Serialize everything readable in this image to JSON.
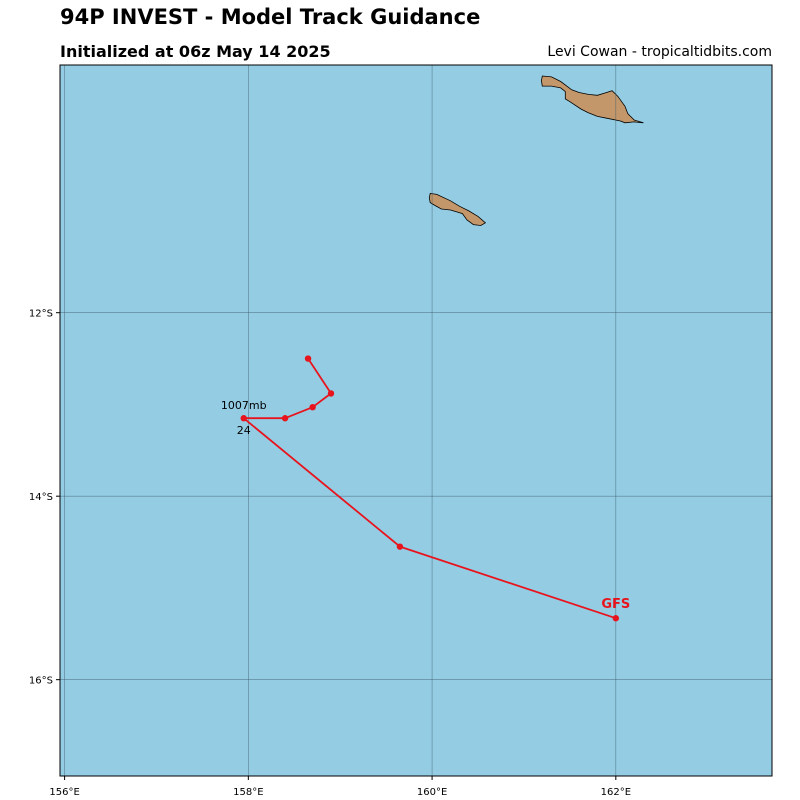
{
  "header": {
    "title": "94P INVEST - Model Track Guidance",
    "subtitle": "Initialized at 06z May 14 2025",
    "credit": "Levi Cowan - tropicaltidbits.com"
  },
  "map": {
    "lon_range": [
      155.95,
      163.7
    ],
    "lat_range": [
      -9.3,
      -17.05
    ],
    "ocean_color": "#94cde3",
    "land_color": "#c3976a",
    "track_color": "#e8141d",
    "lon_ticks": [
      {
        "value": 156,
        "label": "156°E"
      },
      {
        "value": 158,
        "label": "158°E"
      },
      {
        "value": 160,
        "label": "160°E"
      },
      {
        "value": 162,
        "label": "162°E"
      }
    ],
    "lat_ticks": [
      {
        "value": -12,
        "label": "12°S"
      },
      {
        "value": -14,
        "label": "14°S"
      },
      {
        "value": -16,
        "label": "16°S"
      }
    ],
    "track": {
      "model": "GFS",
      "points": [
        {
          "lon": 162.0,
          "lat": -15.33
        },
        {
          "lon": 159.65,
          "lat": -14.55
        },
        {
          "lon": 157.95,
          "lat": -13.15
        },
        {
          "lon": 158.4,
          "lat": -13.15
        },
        {
          "lon": 158.7,
          "lat": -13.03
        },
        {
          "lon": 158.9,
          "lat": -12.88
        },
        {
          "lon": 158.65,
          "lat": -12.5
        }
      ],
      "annotation": {
        "lon": 157.95,
        "lat": -13.15,
        "pressure": "1007mb",
        "hour": "24"
      }
    },
    "islands": [
      {
        "name": "island-1",
        "coords": [
          [
            161.2,
            -9.42
          ],
          [
            161.3,
            -9.43
          ],
          [
            161.4,
            -9.48
          ],
          [
            161.52,
            -9.57
          ],
          [
            161.6,
            -9.6
          ],
          [
            161.7,
            -9.62
          ],
          [
            161.8,
            -9.63
          ],
          [
            161.9,
            -9.6
          ],
          [
            161.96,
            -9.58
          ],
          [
            162.02,
            -9.64
          ],
          [
            162.1,
            -9.75
          ],
          [
            162.13,
            -9.83
          ],
          [
            162.2,
            -9.9
          ],
          [
            162.3,
            -9.93
          ],
          [
            162.2,
            -9.92
          ],
          [
            162.1,
            -9.93
          ],
          [
            162.05,
            -9.91
          ],
          [
            161.9,
            -9.88
          ],
          [
            161.8,
            -9.86
          ],
          [
            161.7,
            -9.82
          ],
          [
            161.62,
            -9.78
          ],
          [
            161.5,
            -9.7
          ],
          [
            161.45,
            -9.67
          ],
          [
            161.45,
            -9.59
          ],
          [
            161.4,
            -9.55
          ],
          [
            161.3,
            -9.53
          ],
          [
            161.2,
            -9.53
          ],
          [
            161.19,
            -9.47
          ]
        ]
      },
      {
        "name": "island-2",
        "coords": [
          [
            159.98,
            -10.7
          ],
          [
            160.05,
            -10.71
          ],
          [
            160.2,
            -10.78
          ],
          [
            160.3,
            -10.84
          ],
          [
            160.4,
            -10.89
          ],
          [
            160.5,
            -10.95
          ],
          [
            160.58,
            -11.02
          ],
          [
            160.53,
            -11.05
          ],
          [
            160.45,
            -11.04
          ],
          [
            160.38,
            -10.99
          ],
          [
            160.33,
            -10.92
          ],
          [
            160.2,
            -10.88
          ],
          [
            160.1,
            -10.87
          ],
          [
            160.03,
            -10.83
          ],
          [
            159.98,
            -10.8
          ],
          [
            159.97,
            -10.75
          ]
        ]
      }
    ]
  }
}
